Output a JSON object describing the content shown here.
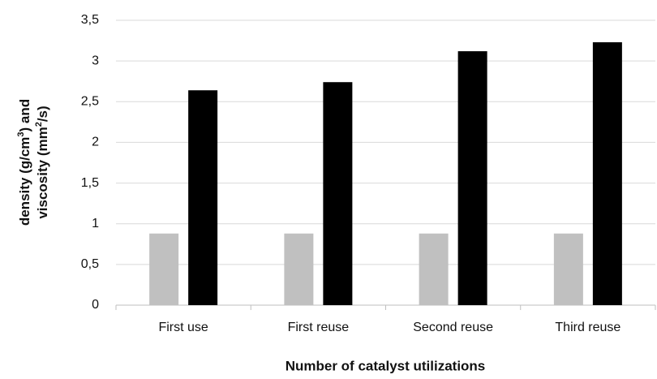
{
  "chart_data": {
    "type": "bar",
    "ylabel": [
      [
        "density (g/cm",
        "3",
        ") and"
      ],
      [
        "viscosity (mm",
        "2",
        "/s)"
      ]
    ],
    "xlabel": "Number of catalyst  utilizations",
    "categories": [
      "First use",
      "First reuse",
      "Second reuse",
      "Third reuse"
    ],
    "series": [
      {
        "color": "#c0c0c0",
        "values": [
          0.88,
          0.88,
          0.88,
          0.88
        ]
      },
      {
        "color": "#000000",
        "values": [
          2.64,
          2.74,
          3.12,
          3.23
        ]
      }
    ],
    "ylim": [
      0,
      3.5
    ],
    "yticks": [
      0,
      {
        "value": 0.5,
        "label": "0,5"
      },
      1,
      {
        "value": 1.5,
        "label": "1,5"
      },
      2,
      {
        "value": 2.5,
        "label": "2,5"
      },
      3,
      {
        "value": 3.5,
        "label": "3,5"
      }
    ],
    "grid": true
  }
}
